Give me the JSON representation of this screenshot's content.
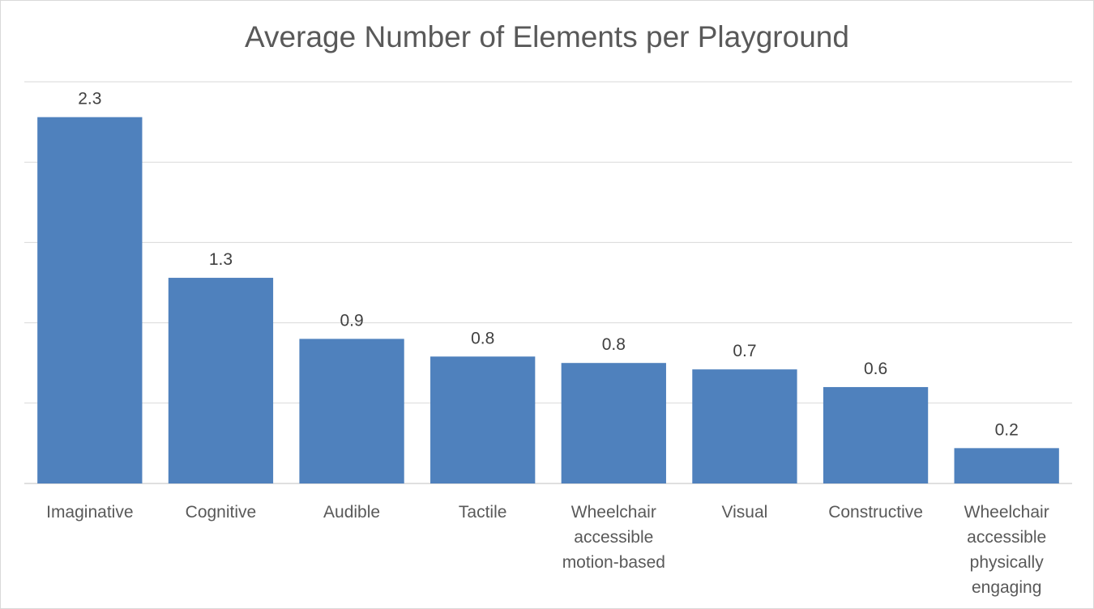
{
  "chart_data": {
    "type": "bar",
    "title": "Average Number of Elements per Playground",
    "categories": [
      "Imaginative",
      "Cognitive",
      "Audible",
      "Tactile",
      "Wheelchair accessible motion-based",
      "Visual",
      "Constructive",
      "Wheelchair accessible physically engaging"
    ],
    "category_lines": [
      [
        "Imaginative"
      ],
      [
        "Cognitive"
      ],
      [
        "Audible"
      ],
      [
        "Tactile"
      ],
      [
        "Wheelchair",
        "accessible",
        "motion-based"
      ],
      [
        "Visual"
      ],
      [
        "Constructive"
      ],
      [
        "Wheelchair",
        "accessible",
        "physically",
        "engaging"
      ]
    ],
    "values": [
      2.28,
      1.28,
      0.9,
      0.79,
      0.75,
      0.71,
      0.6,
      0.22
    ],
    "data_labels": [
      "2.3",
      "1.3",
      "0.9",
      "0.8",
      "0.8",
      "0.7",
      "0.6",
      "0.2"
    ],
    "xlabel": "",
    "ylabel": "",
    "ylim": [
      0,
      2.5
    ],
    "grid": true,
    "legend": "none",
    "colors": {
      "bar": "#4f81bd",
      "grid": "#d9d9d9",
      "axis": "#bfbfbf"
    }
  }
}
